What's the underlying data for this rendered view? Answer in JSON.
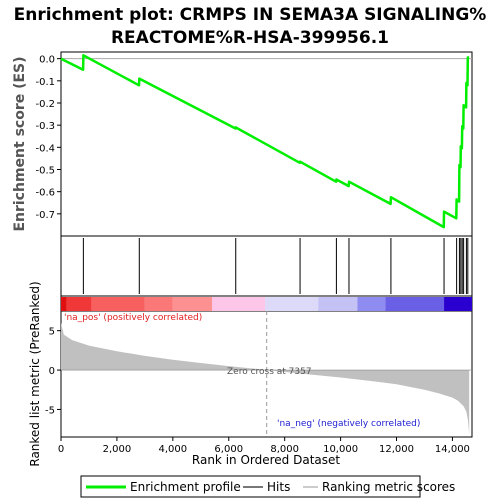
{
  "chart_data": {
    "type": "line",
    "title_line1": "Enrichment plot: CRMPS IN SEMA3A SIGNALING%",
    "title_line2": "REACTOME%R-HSA-399956.1",
    "es_ylabel": "Enrichment score (ES)",
    "rank_ylabel": "Ranked list metric (PreRanked)",
    "xlabel": "Rank in Ordered Dataset",
    "xlim": [
      0,
      14700
    ],
    "es_ylim": [
      -0.8,
      0.03
    ],
    "rank_ylim": [
      -8.5,
      7.5
    ],
    "x_ticks": [
      0,
      2000,
      4000,
      6000,
      8000,
      10000,
      12000,
      14000
    ],
    "x_tick_labels": [
      "0",
      "2,000",
      "4,000",
      "6,000",
      "8,000",
      "10,000",
      "12,000",
      "14,000"
    ],
    "es_ticks": [
      0.0,
      -0.1,
      -0.2,
      -0.3,
      -0.4,
      -0.5,
      -0.6,
      -0.7
    ],
    "es_tick_labels": [
      "0.0",
      "-0.1",
      "-0.2",
      "-0.3",
      "-0.4",
      "-0.5",
      "-0.6",
      "-0.7"
    ],
    "rank_ticks": [
      5,
      0,
      -5
    ],
    "rank_tick_labels": [
      "5",
      "0",
      "-5"
    ],
    "hits": [
      800,
      2800,
      6250,
      8550,
      9850,
      10300,
      11800,
      13700,
      14150,
      14250,
      14300,
      14350,
      14400,
      14500,
      14550
    ],
    "es_curve": {
      "x": [
        0,
        790,
        800,
        2790,
        2800,
        6240,
        6250,
        8540,
        8550,
        9840,
        9850,
        10290,
        10300,
        11790,
        11800,
        13690,
        13700,
        14140,
        14150,
        14240,
        14250,
        14290,
        14300,
        14340,
        14350,
        14390,
        14400,
        14490,
        14500,
        14540,
        14550,
        14600
      ],
      "y": [
        0.0,
        -0.05,
        0.015,
        -0.12,
        -0.09,
        -0.315,
        -0.31,
        -0.47,
        -0.465,
        -0.555,
        -0.545,
        -0.575,
        -0.555,
        -0.655,
        -0.625,
        -0.76,
        -0.69,
        -0.72,
        -0.635,
        -0.645,
        -0.48,
        -0.49,
        -0.395,
        -0.405,
        -0.305,
        -0.315,
        -0.21,
        -0.22,
        -0.11,
        -0.12,
        0.005,
        0.005
      ]
    },
    "rank_metric": {
      "x": [
        0,
        100,
        400,
        1000,
        2000,
        3000,
        4000,
        5000,
        6000,
        7000,
        7357,
        8000,
        9000,
        10000,
        11000,
        12000,
        13000,
        13500,
        14000,
        14200,
        14400,
        14500,
        14560,
        14600
      ],
      "y": [
        6.0,
        4.5,
        3.8,
        3.1,
        2.4,
        1.8,
        1.3,
        0.9,
        0.5,
        0.15,
        0.0,
        -0.25,
        -0.6,
        -0.95,
        -1.35,
        -1.8,
        -2.5,
        -2.95,
        -3.5,
        -3.9,
        -4.6,
        -5.3,
        -6.5,
        -8.2
      ]
    },
    "zero_cross_rank": 7357,
    "zero_cross_label": "Zero cross at 7357",
    "pos_label": "'na_pos' (positively correlated)",
    "neg_label": "'na_neg' (negatively correlated)",
    "heatmap_bands": [
      {
        "x0": 0,
        "x1": 200,
        "color": "#e01010"
      },
      {
        "x0": 200,
        "x1": 1100,
        "color": "#f03838"
      },
      {
        "x0": 1100,
        "x1": 3000,
        "color": "#f86060"
      },
      {
        "x0": 3000,
        "x1": 4000,
        "color": "#fb7878"
      },
      {
        "x0": 4000,
        "x1": 5400,
        "color": "#fd9090"
      },
      {
        "x0": 5400,
        "x1": 7300,
        "color": "#fdc6e8"
      },
      {
        "x0": 7300,
        "x1": 9200,
        "color": "#dcdaf8"
      },
      {
        "x0": 9200,
        "x1": 10600,
        "color": "#c4c2f4"
      },
      {
        "x0": 10600,
        "x1": 11600,
        "color": "#8e8cf0"
      },
      {
        "x0": 11600,
        "x1": 13700,
        "color": "#6a60e8"
      },
      {
        "x0": 13700,
        "x1": 14700,
        "color": "#2a00d0"
      }
    ],
    "legend": [
      {
        "label": "Enrichment profile",
        "color": "#00ee00"
      },
      {
        "label": "Hits",
        "color": "#777777"
      },
      {
        "label": "Ranking metric scores",
        "color": "#cccccc"
      }
    ],
    "colors": {
      "es_line": "#00ee00",
      "hit_line": "#000000",
      "metric_fill": "#c0c0c0",
      "pos_text": "#e02020",
      "neg_text": "#2020d0",
      "zero_text": "#555555"
    }
  }
}
